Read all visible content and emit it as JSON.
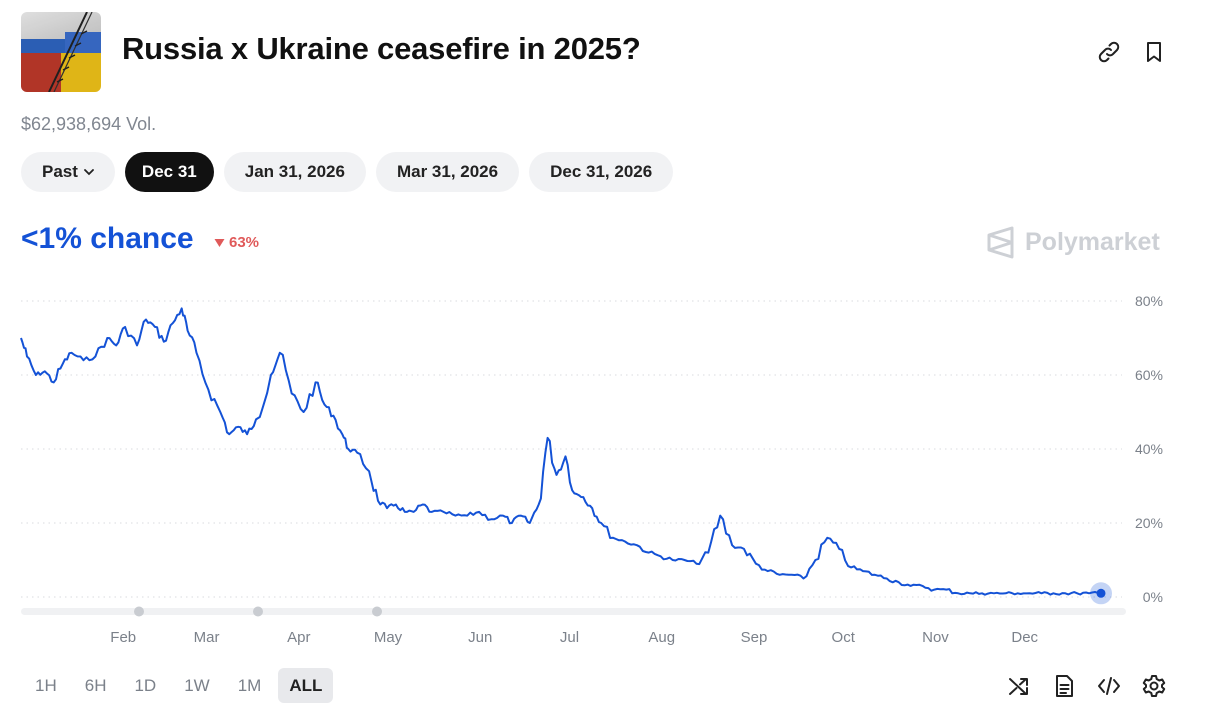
{
  "market": {
    "title": "Russia x Ukraine ceasefire in 2025?",
    "volume": "$62,938,694 Vol."
  },
  "header_icons": [
    "link-icon",
    "bookmark-icon"
  ],
  "date_tabs": {
    "past_label": "Past",
    "items": [
      {
        "label": "Dec 31",
        "active": true
      },
      {
        "label": "Jan 31, 2026",
        "active": false
      },
      {
        "label": "Mar 31, 2026",
        "active": false
      },
      {
        "label": "Dec 31, 2026",
        "active": false
      }
    ]
  },
  "chance": {
    "label": "<1% chance",
    "change": "63%",
    "direction": "down"
  },
  "brand": "Polymarket",
  "colors": {
    "accent": "#1452d6",
    "negative": "#e05a5a"
  },
  "timeframes": {
    "items": [
      "1H",
      "6H",
      "1D",
      "1W",
      "1M",
      "ALL"
    ],
    "active": "ALL"
  },
  "tools": [
    "shuffle-icon",
    "document-icon",
    "code-icon",
    "settings-icon"
  ],
  "chart_data": {
    "type": "line",
    "x_labels": [
      "Feb",
      "Mar",
      "Apr",
      "May",
      "Jun",
      "Jul",
      "Aug",
      "Sep",
      "Oct",
      "Nov",
      "Dec"
    ],
    "y_ticks": [
      "80%",
      "60%",
      "40%",
      "20%",
      "0%"
    ],
    "ylim": [
      0,
      80
    ],
    "grid": true,
    "series": [
      {
        "color": "#1452d6",
        "x": [
          1,
          3,
          6,
          9,
          12,
          15,
          18,
          22,
          26,
          30,
          33,
          36,
          40,
          43,
          46,
          49,
          52,
          55,
          57,
          60,
          64,
          68,
          71,
          74,
          77,
          80,
          85,
          88,
          92,
          96,
          100,
          103,
          106,
          109,
          111,
          114,
          118,
          121,
          124,
          127,
          130,
          133,
          136,
          139,
          143,
          147,
          151,
          155,
          159,
          163,
          166,
          169,
          172,
          175,
          178,
          181,
          184,
          187,
          190,
          193,
          196,
          200,
          204,
          208,
          212,
          216,
          220,
          224,
          228,
          232,
          236,
          240,
          244,
          248,
          252,
          256,
          260,
          264,
          268,
          272,
          276,
          280,
          284,
          288,
          292,
          296,
          300,
          304,
          308,
          312,
          316,
          320,
          324,
          328,
          332,
          336,
          340,
          344,
          348,
          352,
          356,
          360,
          364
        ],
        "y": [
          70,
          65,
          60,
          61,
          58,
          63,
          66,
          64,
          65,
          70,
          68,
          73,
          68,
          75,
          73,
          69,
          74,
          78,
          72,
          66,
          56,
          50,
          44,
          46,
          44,
          48,
          60,
          66,
          55,
          50,
          58,
          52,
          49,
          44,
          40,
          39,
          34,
          26,
          24,
          25,
          23,
          23,
          25,
          23,
          23,
          22,
          22,
          23,
          21,
          22,
          20,
          22,
          20,
          25,
          43,
          33,
          38,
          28,
          27,
          24,
          20,
          16,
          15,
          14,
          12,
          11,
          10,
          10,
          9,
          12,
          22,
          14,
          13,
          9,
          7,
          6,
          6,
          5,
          10,
          16,
          13,
          8,
          7,
          6,
          5,
          4,
          3,
          3,
          2,
          2,
          1,
          1,
          1,
          1,
          1,
          1,
          1,
          1,
          1,
          1,
          1,
          1,
          1
        ]
      }
    ],
    "current_value": 1,
    "scrub_markers": 3
  }
}
